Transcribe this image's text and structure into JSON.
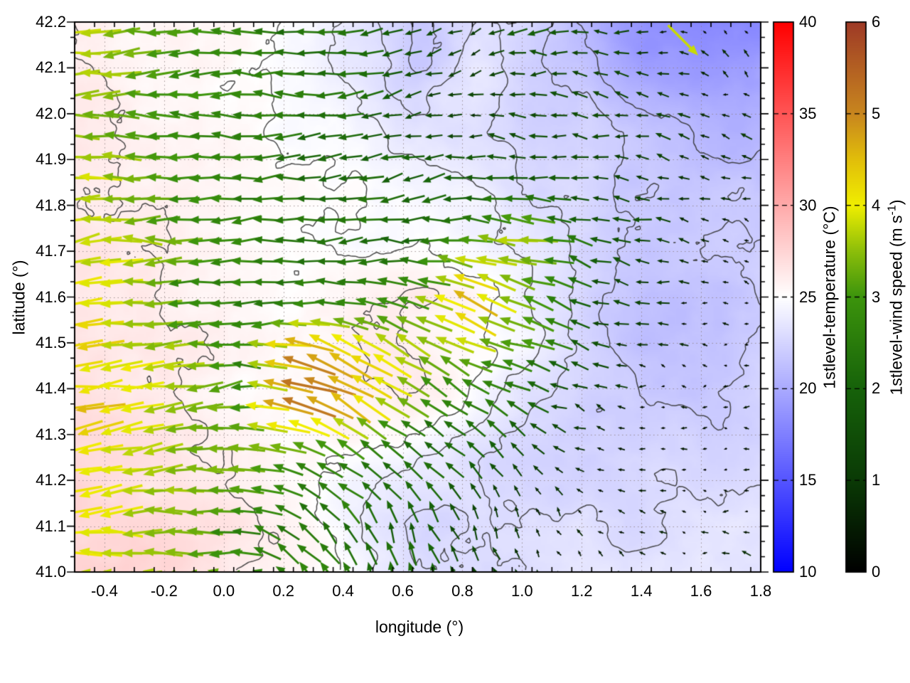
{
  "figure": {
    "xlabel": "longitude (°)",
    "ylabel": "latitude (°)",
    "x_ticks": {
      "values": [
        -0.4,
        -0.2,
        0.0,
        0.2,
        0.4,
        0.6,
        0.8,
        1.0,
        1.2,
        1.4,
        1.6,
        1.8
      ],
      "labels": [
        "-0.4",
        "-0.2",
        "0.0",
        "0.2",
        "0.4",
        "0.6",
        "0.8",
        "1.0",
        "1.2",
        "1.4",
        "1.6",
        "1.8"
      ]
    },
    "y_ticks": {
      "values": [
        41.0,
        41.1,
        41.2,
        41.3,
        41.4,
        41.5,
        41.6,
        41.7,
        41.8,
        41.9,
        42.0,
        42.1,
        42.2
      ],
      "labels": [
        "41.0",
        "41.1",
        "41.2",
        "41.3",
        "41.4",
        "41.5",
        "41.6",
        "41.7",
        "41.8",
        "41.9",
        "42.0",
        "42.1",
        "42.2"
      ]
    }
  },
  "colorbars": {
    "temperature": {
      "title": "1stlevel-temperature (°C)",
      "min": 10,
      "max": 40,
      "tick_values": [
        10,
        15,
        20,
        25,
        30,
        35,
        40
      ],
      "tick_labels": [
        "10",
        "15",
        "20",
        "25",
        "30",
        "35",
        "40"
      ],
      "palette": [
        [
          10,
          "#0000ff"
        ],
        [
          25,
          "#ffffff"
        ],
        [
          40,
          "#ff0000"
        ]
      ]
    },
    "wind": {
      "title_prefix": "1stlevel-wind speed (m s",
      "title_sup": "-1",
      "title_suffix": ")",
      "min": 0,
      "max": 6,
      "tick_values": [
        0,
        1,
        2,
        3,
        4,
        5,
        6
      ],
      "tick_labels": [
        "0",
        "1",
        "2",
        "3",
        "4",
        "5",
        "6"
      ],
      "palette": [
        [
          0,
          "#000000"
        ],
        [
          1,
          "#0a3a05"
        ],
        [
          2,
          "#16620a"
        ],
        [
          3,
          "#3c940c"
        ],
        [
          3.5,
          "#8cbe0a"
        ],
        [
          4,
          "#f0ee00"
        ],
        [
          4.5,
          "#e1be0a"
        ],
        [
          5,
          "#c8861e"
        ],
        [
          6,
          "#9e3a26"
        ]
      ]
    }
  },
  "chart_data": {
    "type": "heatmap",
    "subtype": "temperature field with contour lines and wind vector field",
    "title": "",
    "xlabel": "longitude (°)",
    "ylabel": "latitude (°)",
    "xlim": [
      -0.5,
      1.8
    ],
    "ylim": [
      41.0,
      42.2
    ],
    "grid": "dotted at major ticks",
    "contour_levels_C": [
      21,
      22,
      23,
      24,
      25,
      26
    ],
    "grid_lon": [
      -0.5,
      -0.308,
      -0.117,
      0.075,
      0.267,
      0.458,
      0.65,
      0.842,
      1.033,
      1.225,
      1.417,
      1.608,
      1.8
    ],
    "grid_lat": [
      42.2,
      42.08,
      41.96,
      41.84,
      41.72,
      41.6,
      41.48,
      41.36,
      41.24,
      41.12,
      41.0
    ],
    "temperature_C": [
      [
        26.0,
        25.6,
        25.4,
        25.2,
        24.8,
        23.5,
        22.0,
        23.0,
        22.5,
        20.5,
        18.5,
        18.0,
        18.0
      ],
      [
        26.2,
        25.8,
        25.5,
        25.2,
        24.9,
        23.8,
        22.0,
        23.5,
        22.0,
        21.5,
        19.5,
        19.0,
        19.5
      ],
      [
        26.3,
        26.0,
        25.6,
        25.3,
        25.0,
        24.5,
        23.5,
        23.0,
        22.0,
        22.5,
        21.5,
        21.0,
        20.5
      ],
      [
        26.3,
        26.1,
        25.8,
        25.4,
        25.1,
        25.0,
        24.5,
        24.0,
        23.0,
        22.5,
        22.0,
        21.5,
        21.5
      ],
      [
        26.5,
        26.2,
        25.9,
        25.5,
        25.2,
        25.1,
        25.0,
        24.5,
        23.5,
        22.5,
        22.0,
        22.0,
        22.0
      ],
      [
        26.4,
        26.1,
        25.8,
        25.5,
        25.5,
        25.7,
        25.9,
        25.3,
        24.0,
        22.2,
        21.3,
        21.5,
        22.0
      ],
      [
        26.8,
        26.4,
        26.0,
        25.5,
        25.7,
        26.1,
        26.0,
        25.4,
        24.3,
        22.8,
        21.5,
        21.8,
        22.2
      ],
      [
        27.0,
        26.6,
        26.1,
        25.5,
        25.3,
        25.6,
        25.8,
        24.8,
        23.3,
        22.3,
        22.0,
        22.2,
        22.5
      ],
      [
        27.3,
        26.9,
        26.4,
        25.9,
        25.3,
        24.6,
        23.8,
        23.2,
        22.4,
        22.4,
        22.6,
        22.7,
        23.0
      ],
      [
        27.6,
        27.1,
        26.7,
        26.1,
        25.3,
        23.8,
        22.8,
        23.0,
        23.0,
        23.0,
        23.0,
        23.2,
        23.3
      ],
      [
        27.4,
        27.3,
        26.9,
        26.2,
        25.6,
        24.3,
        23.3,
        23.1,
        23.2,
        23.3,
        23.4,
        23.4,
        23.5
      ]
    ],
    "wind_speed_ms": [
      [
        3.6,
        3.2,
        2.9,
        2.6,
        2.3,
        2.1,
        1.3,
        1.2,
        1.8,
        1.4,
        0.9,
        0.5,
        0.4
      ],
      [
        3.7,
        3.3,
        2.9,
        2.6,
        2.3,
        2.1,
        1.2,
        0.9,
        1.5,
        1.4,
        1.0,
        0.5,
        0.4
      ],
      [
        3.6,
        3.3,
        3.0,
        2.6,
        2.3,
        2.1,
        1.3,
        1.2,
        1.6,
        1.5,
        1.1,
        0.8,
        0.6
      ],
      [
        3.6,
        3.3,
        3.0,
        2.6,
        2.3,
        2.1,
        2.1,
        2.0,
        1.8,
        1.5,
        1.2,
        0.8,
        0.6
      ],
      [
        3.9,
        3.6,
        3.1,
        2.6,
        2.3,
        2.2,
        2.3,
        3.0,
        3.8,
        1.9,
        1.3,
        0.6,
        0.4
      ],
      [
        4.0,
        3.6,
        3.1,
        2.6,
        2.4,
        2.6,
        3.1,
        4.6,
        3.4,
        1.9,
        1.0,
        0.4,
        0.35
      ],
      [
        4.2,
        3.9,
        3.3,
        2.8,
        4.8,
        4.2,
        3.7,
        3.5,
        2.9,
        1.4,
        0.55,
        0.4,
        0.3
      ],
      [
        4.4,
        4.1,
        3.5,
        2.9,
        5.2,
        4.6,
        3.0,
        2.5,
        1.9,
        0.9,
        0.45,
        0.3,
        0.3
      ],
      [
        4.1,
        3.9,
        3.5,
        3.3,
        2.6,
        2.5,
        2.1,
        1.8,
        1.1,
        0.6,
        0.4,
        0.3,
        0.3
      ],
      [
        4.2,
        3.8,
        3.3,
        2.8,
        2.3,
        2.5,
        2.1,
        1.5,
        0.8,
        0.4,
        0.3,
        0.3,
        0.4
      ],
      [
        4.0,
        3.8,
        3.5,
        3.0,
        2.6,
        2.3,
        2.0,
        1.5,
        0.8,
        0.5,
        0.4,
        0.5,
        0.9
      ]
    ],
    "wind_dir_deg_ccw_from_east": [
      [
        183,
        181,
        180,
        179,
        181,
        185,
        195,
        200,
        185,
        175,
        170,
        160,
        145
      ],
      [
        182,
        180,
        179,
        180,
        182,
        187,
        198,
        192,
        180,
        172,
        165,
        150,
        135
      ],
      [
        181,
        180,
        180,
        181,
        183,
        188,
        194,
        184,
        177,
        172,
        168,
        158,
        150
      ],
      [
        182,
        181,
        180,
        182,
        184,
        186,
        189,
        181,
        175,
        172,
        170,
        164,
        158
      ],
      [
        184,
        182,
        181,
        183,
        186,
        189,
        184,
        174,
        164,
        166,
        170,
        168,
        163
      ],
      [
        185,
        183,
        181,
        184,
        187,
        172,
        161,
        155,
        158,
        163,
        168,
        172,
        168
      ],
      [
        186,
        184,
        182,
        185,
        162,
        151,
        154,
        158,
        161,
        164,
        168,
        173,
        178
      ],
      [
        187,
        185,
        183,
        184,
        156,
        146,
        150,
        156,
        159,
        163,
        172,
        178,
        183
      ],
      [
        186,
        184,
        182,
        179,
        166,
        152,
        142,
        132,
        136,
        148,
        166,
        182,
        188
      ],
      [
        185,
        183,
        180,
        174,
        143,
        122,
        112,
        116,
        121,
        138,
        158,
        176,
        188
      ],
      [
        184,
        182,
        180,
        171,
        132,
        112,
        102,
        106,
        111,
        128,
        148,
        168,
        183
      ]
    ],
    "outlier_arrows": [
      {
        "lon": 1.54,
        "lat": 42.16,
        "speed_ms": 3.8,
        "dir_deg": -45
      }
    ]
  }
}
